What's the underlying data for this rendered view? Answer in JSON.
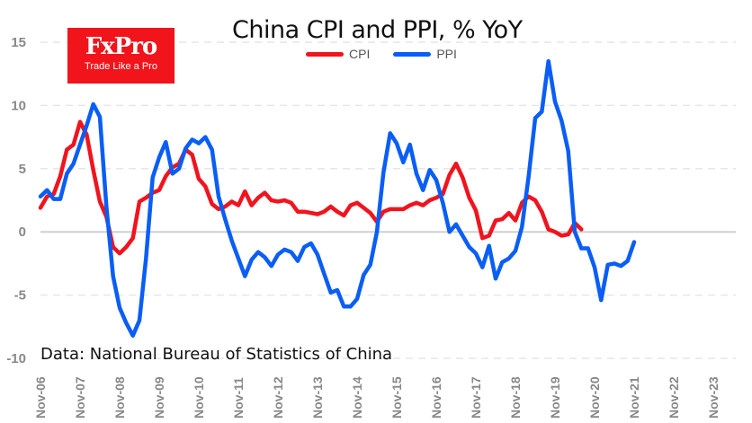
{
  "brand": {
    "name": "FxPro",
    "tagline": "Trade Like a Pro",
    "color": "#f2141b"
  },
  "chart_data": {
    "type": "line",
    "title": "China CPI and PPI, % YoY",
    "source_note": "Data: National Bureau of Statistics of China",
    "xlabel": "",
    "ylabel": "",
    "ylim": [
      -10,
      15
    ],
    "yticks": [
      15,
      10,
      5,
      0,
      -5,
      -10
    ],
    "xtick_labels": [
      "Nov-06",
      "Nov-07",
      "Nov-08",
      "Nov-09",
      "Nov-10",
      "Nov-11",
      "Nov-12",
      "Nov-13",
      "Nov-14",
      "Nov-15",
      "Nov-16",
      "Nov-17",
      "Nov-18",
      "Nov-19",
      "Nov-20",
      "Nov-21",
      "Nov-22",
      "Nov-23"
    ],
    "x_start": "Nov-06",
    "x_step_months": 3,
    "grid": true,
    "legend_position": "top-center",
    "series": [
      {
        "name": "CPI",
        "color": "#f0141e",
        "values": [
          1.9,
          2.8,
          3.0,
          4.4,
          6.5,
          6.9,
          8.7,
          7.7,
          4.9,
          2.4,
          1.2,
          -1.2,
          -1.7,
          -1.2,
          -0.5,
          2.4,
          2.7,
          3.1,
          3.3,
          4.4,
          5.1,
          5.4,
          6.5,
          6.1,
          4.2,
          3.6,
          2.2,
          1.8,
          2.0,
          2.4,
          2.1,
          3.2,
          2.1,
          2.7,
          3.1,
          2.5,
          2.4,
          2.5,
          2.3,
          1.6,
          1.6,
          1.5,
          1.4,
          1.6,
          2.0,
          1.6,
          1.3,
          2.1,
          2.3,
          1.9,
          1.5,
          0.8,
          1.6,
          1.8,
          1.8,
          1.8,
          2.1,
          2.3,
          2.1,
          2.5,
          2.7,
          3.0,
          4.5,
          5.4,
          4.3,
          2.7,
          1.7,
          -0.5,
          -0.3,
          0.9,
          1.0,
          1.5,
          0.9,
          2.3,
          2.8,
          2.5,
          1.6,
          0.2,
          0.0,
          -0.3,
          -0.2,
          0.7,
          0.2
        ],
        "months_per_point": 2
      },
      {
        "name": "PPI",
        "color": "#0a5ef5",
        "values": [
          2.8,
          3.3,
          2.6,
          2.6,
          4.6,
          5.4,
          6.9,
          8.4,
          10.1,
          9.1,
          2.0,
          -3.5,
          -6.0,
          -7.2,
          -8.2,
          -7.0,
          -2.1,
          4.3,
          5.9,
          7.1,
          4.6,
          5.0,
          6.6,
          7.3,
          7.0,
          7.5,
          6.5,
          2.8,
          1.0,
          -0.7,
          -2.1,
          -3.5,
          -2.2,
          -1.6,
          -2.0,
          -2.7,
          -1.8,
          -1.4,
          -1.6,
          -2.3,
          -1.2,
          -0.9,
          -1.8,
          -3.3,
          -4.8,
          -4.6,
          -5.9,
          -5.9,
          -5.3,
          -3.4,
          -2.6,
          0.0,
          4.7,
          7.8,
          7.0,
          5.5,
          6.9,
          4.6,
          3.3,
          4.9,
          4.1,
          2.3,
          0.0,
          0.6,
          -0.3,
          -1.2,
          -1.7,
          -2.8,
          -1.1,
          -3.7,
          -2.4,
          -2.1,
          -1.5,
          0.4,
          4.4,
          9.0,
          9.5,
          13.5,
          10.3,
          8.8,
          6.4,
          0.0,
          -1.3,
          -1.3,
          -2.8,
          -5.4,
          -2.6,
          -2.5,
          -2.7,
          -2.3,
          -0.8
        ],
        "months_per_point": 2
      }
    ]
  }
}
